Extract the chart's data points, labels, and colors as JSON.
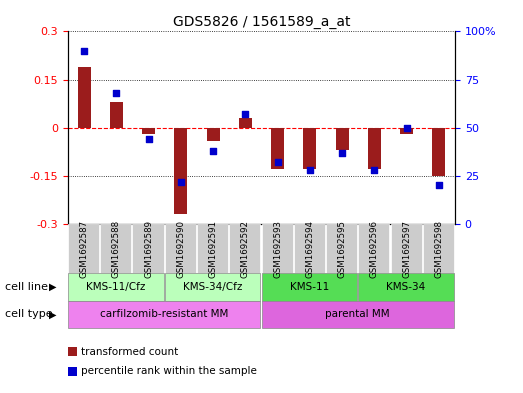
{
  "title": "GDS5826 / 1561589_a_at",
  "samples": [
    "GSM1692587",
    "GSM1692588",
    "GSM1692589",
    "GSM1692590",
    "GSM1692591",
    "GSM1692592",
    "GSM1692593",
    "GSM1692594",
    "GSM1692595",
    "GSM1692596",
    "GSM1692597",
    "GSM1692598"
  ],
  "transformed_count": [
    0.19,
    0.08,
    -0.02,
    -0.27,
    -0.04,
    0.03,
    -0.13,
    -0.13,
    -0.07,
    -0.13,
    -0.02,
    -0.15
  ],
  "percentile_rank": [
    90,
    68,
    44,
    22,
    38,
    57,
    32,
    28,
    37,
    28,
    50,
    20
  ],
  "ylim_left": [
    -0.3,
    0.3
  ],
  "ylim_right": [
    0,
    100
  ],
  "yticks_left": [
    -0.3,
    -0.15,
    0,
    0.15,
    0.3
  ],
  "ytick_labels_left": [
    "-0.3",
    "-0.15",
    "0",
    "0.15",
    "0.3"
  ],
  "yticks_right": [
    0,
    25,
    50,
    75,
    100
  ],
  "ytick_labels_right": [
    "0",
    "25",
    "50",
    "75",
    "100%"
  ],
  "bar_color": "#9b1c1c",
  "dot_color": "#0000cc",
  "cell_line_groups": [
    {
      "label": "KMS-11/Cfz",
      "start": 0,
      "end": 3,
      "color": "#bbffbb"
    },
    {
      "label": "KMS-34/Cfz",
      "start": 3,
      "end": 6,
      "color": "#bbffbb"
    },
    {
      "label": "KMS-11",
      "start": 6,
      "end": 9,
      "color": "#55dd55"
    },
    {
      "label": "KMS-34",
      "start": 9,
      "end": 12,
      "color": "#55dd55"
    }
  ],
  "cell_type_groups": [
    {
      "label": "carfilzomib-resistant MM",
      "start": 0,
      "end": 6,
      "color": "#ee82ee"
    },
    {
      "label": "parental MM",
      "start": 6,
      "end": 12,
      "color": "#dd66dd"
    }
  ],
  "legend_bar_label": "transformed count",
  "legend_dot_label": "percentile rank within the sample",
  "background_color": "#ffffff",
  "tick_bg_color": "#cccccc"
}
